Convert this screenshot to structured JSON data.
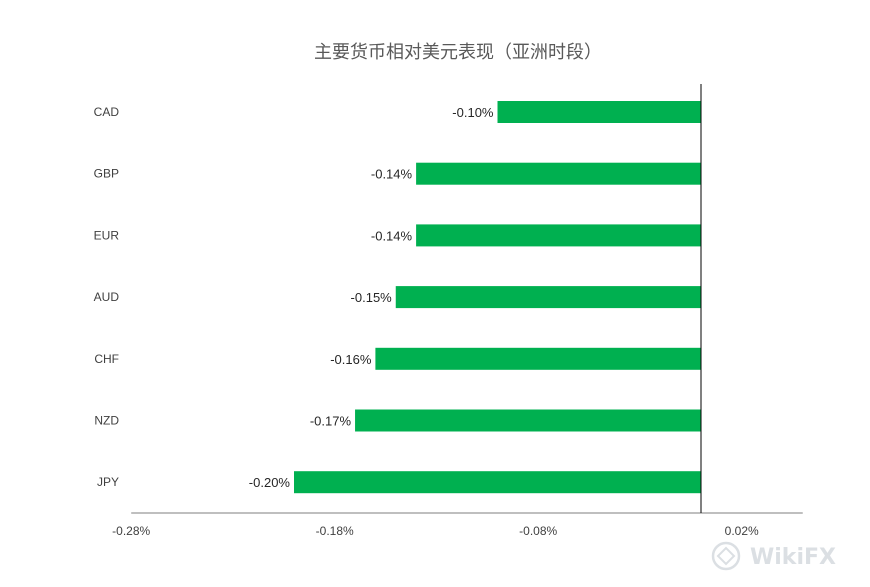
{
  "chart_data": {
    "type": "bar",
    "orientation": "horizontal",
    "title": "主要货币相对美元表现（亚洲时段）",
    "categories": [
      "CAD",
      "GBP",
      "EUR",
      "AUD",
      "CHF",
      "NZD",
      "JPY"
    ],
    "values": [
      -0.1,
      -0.14,
      -0.14,
      -0.15,
      -0.16,
      -0.17,
      -0.2
    ],
    "data_labels": [
      "-0.10%",
      "-0.14%",
      "-0.14%",
      "-0.15%",
      "-0.16%",
      "-0.17%",
      "-0.20%"
    ],
    "xlim": [
      -0.28,
      0.05
    ],
    "xticks": [
      -0.28,
      -0.18,
      -0.08,
      0.02
    ],
    "xtick_labels": [
      "-0.28%",
      "-0.18%",
      "-0.08%",
      "0.02%"
    ],
    "grid": false,
    "legend": "none",
    "bar_color": "#00b050"
  },
  "watermark": {
    "text": "WikiFX"
  }
}
